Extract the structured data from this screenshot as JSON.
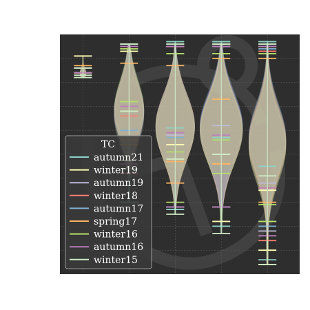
{
  "chart_data": {
    "type": "violin",
    "title": "",
    "xlabel": "",
    "ylabel": "",
    "ylim": [
      0,
      100
    ],
    "grid": true,
    "background": "#2e2e2e",
    "legend": {
      "title": "TC",
      "placement": "lower-left",
      "entries": [
        "autumn21",
        "winter19",
        "autumn19",
        "winter18",
        "autumn17",
        "spring17",
        "winter16",
        "autumn16",
        "winter15"
      ]
    },
    "series": [
      {
        "name": "autumn21",
        "color": "#8dd3c7",
        "violins": [
          {
            "pos": 1,
            "center": 84,
            "halfwidth": 0.06,
            "max": 86,
            "min": 82,
            "mean": 84,
            "spread": 2
          },
          {
            "pos": 2,
            "center": 66,
            "halfwidth": 0.32,
            "max": 96,
            "min": 30,
            "mean": 66,
            "spread": 12
          },
          {
            "pos": 3,
            "center": 61,
            "halfwidth": 0.42,
            "max": 97,
            "min": 27,
            "mean": 61,
            "spread": 13
          },
          {
            "pos": 4,
            "center": 61,
            "halfwidth": 0.46,
            "max": 97,
            "min": 20,
            "mean": 57,
            "spread": 14
          },
          {
            "pos": 5,
            "center": 55,
            "halfwidth": 0.4,
            "max": 97,
            "min": 6,
            "mean": 45,
            "spread": 14
          }
        ]
      },
      {
        "name": "winter19",
        "color": "#ffffb3",
        "violins": [
          {
            "pos": 1,
            "center": 84,
            "halfwidth": 0.06,
            "max": 91,
            "min": 82,
            "mean": 86,
            "spread": 2
          },
          {
            "pos": 2,
            "center": 68,
            "halfwidth": 0.3,
            "max": 93,
            "min": 44,
            "mean": 68,
            "spread": 11
          },
          {
            "pos": 3,
            "center": 60,
            "halfwidth": 0.4,
            "max": 95,
            "min": 28,
            "mean": 54,
            "spread": 13
          },
          {
            "pos": 4,
            "center": 60,
            "halfwidth": 0.44,
            "max": 96,
            "min": 22,
            "mean": 50,
            "spread": 14
          },
          {
            "pos": 5,
            "center": 53,
            "halfwidth": 0.4,
            "max": 95,
            "min": 10,
            "mean": 35,
            "spread": 14
          }
        ]
      },
      {
        "name": "autumn19",
        "color": "#bebada",
        "violins": [
          {
            "pos": 1,
            "center": 84,
            "halfwidth": 0.06,
            "max": 86,
            "min": 82,
            "mean": 84,
            "spread": 2
          },
          {
            "pos": 2,
            "center": 68,
            "halfwidth": 0.32,
            "max": 96,
            "min": 46,
            "mean": 72,
            "spread": 12
          },
          {
            "pos": 3,
            "center": 62,
            "halfwidth": 0.42,
            "max": 95,
            "min": 28,
            "mean": 58,
            "spread": 13
          },
          {
            "pos": 4,
            "center": 61,
            "halfwidth": 0.46,
            "max": 96,
            "min": 28,
            "mean": 62,
            "spread": 14
          },
          {
            "pos": 5,
            "center": 56,
            "halfwidth": 0.4,
            "max": 96,
            "min": 18,
            "mean": 38,
            "spread": 14
          }
        ]
      },
      {
        "name": "winter18",
        "color": "#fb8072",
        "violins": [
          {
            "pos": 1,
            "center": 84,
            "halfwidth": 0.06,
            "max": 86,
            "min": 82,
            "mean": 84,
            "spread": 2
          },
          {
            "pos": 2,
            "center": 67,
            "halfwidth": 0.32,
            "max": 95,
            "min": 42,
            "mean": 66,
            "spread": 12
          },
          {
            "pos": 3,
            "center": 61,
            "halfwidth": 0.42,
            "max": 95,
            "min": 28,
            "mean": 48,
            "spread": 13
          },
          {
            "pos": 4,
            "center": 60,
            "halfwidth": 0.46,
            "max": 95,
            "min": 28,
            "mean": 46,
            "spread": 14
          },
          {
            "pos": 5,
            "center": 55,
            "halfwidth": 0.4,
            "max": 93,
            "min": 14,
            "mean": 36,
            "spread": 14
          }
        ]
      },
      {
        "name": "autumn17",
        "color": "#80b1d3",
        "violins": [
          {
            "pos": 1,
            "center": 84,
            "halfwidth": 0.06,
            "max": 86,
            "min": 82,
            "mean": 84,
            "spread": 2
          },
          {
            "pos": 2,
            "center": 68,
            "halfwidth": 0.32,
            "max": 94,
            "min": 44,
            "mean": 60,
            "spread": 12
          },
          {
            "pos": 3,
            "center": 62,
            "halfwidth": 0.42,
            "max": 96,
            "min": 28,
            "mean": 57,
            "spread": 13
          },
          {
            "pos": 4,
            "center": 62,
            "halfwidth": 0.46,
            "max": 95,
            "min": 28,
            "mean": 56,
            "spread": 14
          },
          {
            "pos": 5,
            "center": 57,
            "halfwidth": 0.4,
            "max": 94,
            "min": 20,
            "mean": 22,
            "spread": 14
          }
        ]
      },
      {
        "name": "spring17",
        "color": "#fdb462",
        "violins": [
          {
            "pos": 1,
            "center": 84,
            "halfwidth": 0.06,
            "max": 87,
            "min": 82,
            "mean": 84,
            "spread": 2
          },
          {
            "pos": 2,
            "center": 69,
            "halfwidth": 0.3,
            "max": 88,
            "min": 54,
            "mean": 56,
            "spread": 11
          },
          {
            "pos": 3,
            "center": 62,
            "halfwidth": 0.42,
            "max": 87,
            "min": 38,
            "mean": 47,
            "spread": 13
          },
          {
            "pos": 4,
            "center": 61,
            "halfwidth": 0.44,
            "max": 90,
            "min": 46,
            "mean": 73,
            "spread": 14
          },
          {
            "pos": 5,
            "center": 55,
            "halfwidth": 0.4,
            "max": 90,
            "min": 4,
            "mean": 30,
            "spread": 14
          }
        ]
      },
      {
        "name": "winter16",
        "color": "#b3de69",
        "violins": [
          {
            "pos": 1,
            "center": 84,
            "halfwidth": 0.06,
            "max": 86,
            "min": 82,
            "mean": 84,
            "spread": 2
          },
          {
            "pos": 2,
            "center": 69,
            "halfwidth": 0.32,
            "max": 94,
            "min": 46,
            "mean": 72,
            "spread": 12
          },
          {
            "pos": 3,
            "center": 62,
            "halfwidth": 0.42,
            "max": 92,
            "min": 30,
            "mean": 51,
            "spread": 13
          },
          {
            "pos": 4,
            "center": 60,
            "halfwidth": 0.46,
            "max": 92,
            "min": 42,
            "mean": 56,
            "spread": 14
          },
          {
            "pos": 5,
            "center": 56,
            "halfwidth": 0.4,
            "max": 92,
            "min": 22,
            "mean": 29,
            "spread": 14
          }
        ]
      },
      {
        "name": "autumn16",
        "color": "#bc80bd",
        "violins": [
          {
            "pos": 1,
            "center": 84,
            "halfwidth": 0.06,
            "max": 86,
            "min": 82,
            "mean": 84,
            "spread": 2
          },
          {
            "pos": 2,
            "center": 68,
            "halfwidth": 0.32,
            "max": 95,
            "min": 46,
            "mean": 70,
            "spread": 12
          },
          {
            "pos": 3,
            "center": 62,
            "halfwidth": 0.42,
            "max": 95,
            "min": 28,
            "mean": 59,
            "spread": 13
          },
          {
            "pos": 4,
            "center": 61,
            "halfwidth": 0.46,
            "max": 95,
            "min": 28,
            "mean": 58,
            "spread": 14
          },
          {
            "pos": 5,
            "center": 56,
            "halfwidth": 0.4,
            "max": 95,
            "min": 16,
            "mean": 36,
            "spread": 14
          }
        ]
      },
      {
        "name": "winter15",
        "color": "#ccebc5",
        "violins": [
          {
            "pos": 1,
            "center": 84,
            "halfwidth": 0.06,
            "max": 86,
            "min": 82,
            "mean": 83,
            "spread": 2
          },
          {
            "pos": 2,
            "center": 68,
            "halfwidth": 0.32,
            "max": 96,
            "min": 44,
            "mean": 68,
            "spread": 12
          },
          {
            "pos": 3,
            "center": 61,
            "halfwidth": 0.42,
            "max": 96,
            "min": 25,
            "mean": 48,
            "spread": 13
          },
          {
            "pos": 4,
            "center": 60,
            "halfwidth": 0.46,
            "max": 96,
            "min": 17,
            "mean": 50,
            "spread": 14
          },
          {
            "pos": 5,
            "center": 54,
            "halfwidth": 0.4,
            "max": 96,
            "min": 4,
            "mean": 41,
            "spread": 14
          }
        ]
      }
    ]
  }
}
